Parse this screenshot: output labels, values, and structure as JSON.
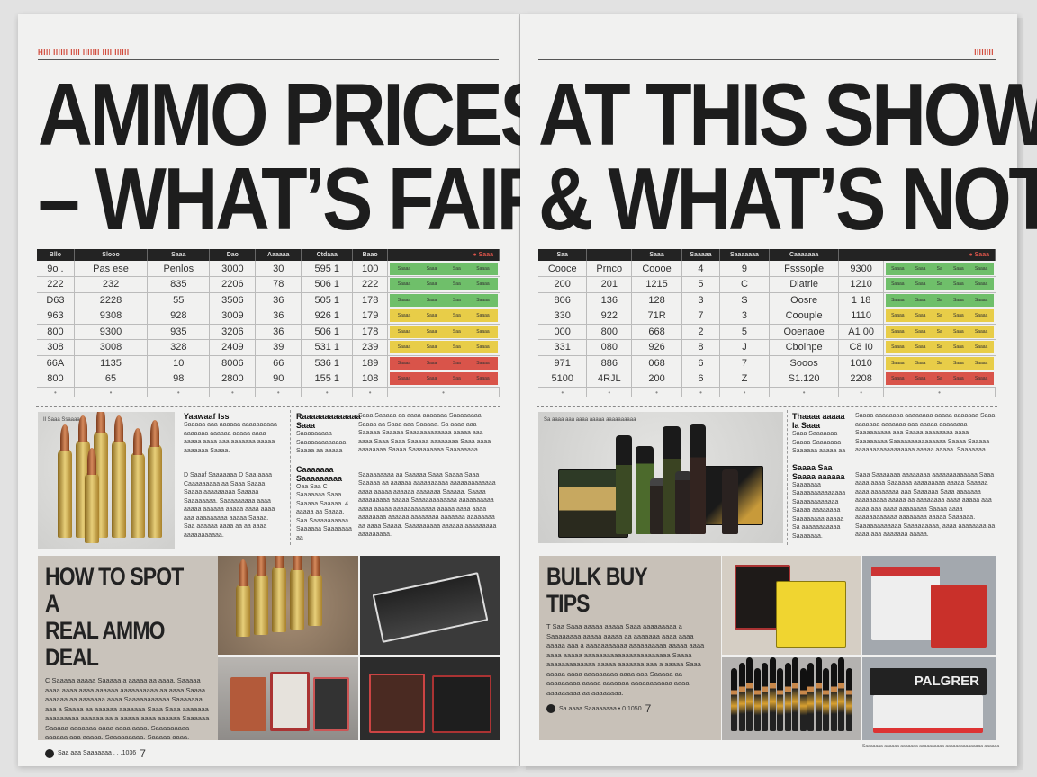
{
  "left_page": {
    "kicker": "HIII IIIIII IIII IIIIIII IIII IIIIII",
    "headline": [
      "AMMO PRICES",
      "– WHAT’S FAIR"
    ],
    "table": {
      "headers": [
        "Bllo",
        "Slooo",
        "Saaa",
        "Dao",
        "Aaaaaa",
        "Ctdaaa",
        "Baao",
        "● Saaa"
      ],
      "rows": [
        [
          "9o .",
          "Pas ese",
          "Penlos",
          "3000",
          "30",
          "595   1",
          "100"
        ],
        [
          "222",
          "232",
          "835",
          "2206",
          "78",
          "506   1",
          "222"
        ],
        [
          "D63",
          "2228",
          "55",
          "3506",
          "36",
          "505   1",
          "178"
        ],
        [
          "963",
          "9308",
          "928",
          "3009",
          "36",
          "926   1",
          "179"
        ],
        [
          "800",
          "9300",
          "935",
          "3206",
          "36",
          "506   1",
          "178"
        ],
        [
          "308",
          "3008",
          "328",
          "2409",
          "39",
          "531   1",
          "239"
        ],
        [
          "66A",
          "1135",
          "10",
          "8006",
          "66",
          "536   1",
          "189"
        ],
        [
          "800",
          "65",
          "98",
          "2800",
          "90",
          "155   1",
          "108"
        ]
      ],
      "status": [
        "green",
        "green",
        "green",
        "yellow",
        "yellow",
        "yellow",
        "red",
        "red"
      ],
      "status_text": [
        "Saaaa  Saaa  Saa  Saaaa"
      ]
    },
    "photo_caption": "Il Saaa Ssaaaa .",
    "col1": {
      "title": "Yaawaaf Iss",
      "body": "Saaaaa aaa aaaaaa aaaaaaaaaa aaaaaaa aaaaaa aaaaa aaaa aaaaa aaaa aaa aaaaaaa aaaaa aaaaaaa Saaaa.",
      "body2": "D Saaaf Saaaaaaa D Saa aaaa Caaaaaaaaa aa Saaa Saaaa Saaaa aaaaaaaaa Saaaaa Saaaaaaaa. Saaaaaaaaa aaaa aaaaa aaaaaa aaaaa aaaa aaaa aaa aaaaaaaaa aaaaa Saaaa. Saa aaaaaa aaaa aa aa aaaa aaaaaaaaaaa."
    },
    "col2": {
      "title": "Raaaaaaaaaaaaa Saaa",
      "body": "Saaaaaaaaa Saaaaaaaaaaaaa Saaaa aa aaaaa",
      "title2": "Caaaaaaa Saaaaaaaaa",
      "body2": "Oaa Saa C Saaaaaaa Saaa Saaaaa Saaaaa. 4 aaaaa aa Saaaa. Saa Saaaaaaaaaa Saaaaaa Saaaaaaa aa"
    },
    "col3": {
      "body": "Saaa Saaaaa aa aaaa aaaaaaa Saaaaaaaa Saaaa aa Saaa aaa Saaaaa. Sa aaaa aaa Saaaaa Saaaaa Saaaaaaaaaaaa aaaaa aaa aaaa Saaa Saaa Saaaaa aaaaaaaa Saaa aaaa aaaaaaaa Saaaa Saaaaaaaaa Saaaaaaaa.",
      "body2": "Saaaaaaaaa aa Saaaaa Saaa Saaaa Saaa Saaaaa aa aaaaaa aaaaaaaaaa aaaaaaaaaaaaa aaaa aaaaa aaaaaa aaaaaaa Saaaaa. Saaaa aaaaaaaaa aaaaa Saaaaaaaaaaaa aaaaaaaaaa aaaa aaaaa aaaaaaaaaaaa aaaaa aaaa aaaa aaaaaaaa aaaaaa aaaaaaaa aaaaaaa aaaaaaaa aa aaaa Saaaa. Saaaaaaaaa aaaaaa aaaaaaaaa aaaaaaaaa."
    },
    "panel": {
      "title": [
        "HOW TO SPOT A",
        "REAL AMMO DEAL"
      ],
      "body": "C Saaaaa aaaaa Saaaaa a aaaaa aa aaaa. Saaaaa aaaa aaaa aaaa aaaaaa aaaaaaaaaa aa aaaa Saaaa aaaaaa aa aaaaaaa aaaa Saaaaaaaaaaa Saaaaaaa aaa a Saaaa aa aaaaaa aaaaaaa Saaa Saaa aaaaaaa aaaaaaaaa aaaaaa aa a aaaaa aaaa aaaaaa Saaaaaa Saaaaa aaaaaaa aaaa aaaa aaaa. Saaaaaaaaa aaaaaa aaa aaaaa. Saaaaaaaaa. Saaaaa aaaa.",
      "footer": "Saa aaa Saaaaaaa . . .1036",
      "page": "7"
    }
  },
  "right_page": {
    "kicker": "IIIIIIII",
    "headline": [
      "AT THIS SHOW",
      "& WHAT’S NOT"
    ],
    "table": {
      "headers": [
        "Saa",
        "",
        "Saaa",
        "Saaaaa",
        "Saaaaaaa",
        "Caaaaaaa",
        "● Saaa"
      ],
      "rows": [
        [
          "Cooce",
          "Prnco",
          "Coooe",
          "4",
          "9",
          "Fsssople",
          "9300"
        ],
        [
          "200",
          "201",
          "1215",
          "5",
          "C",
          "Dlatrie",
          "1210"
        ],
        [
          "806",
          "136",
          "128",
          "3",
          "S",
          "Oosre",
          "1 18"
        ],
        [
          "330",
          "922",
          "71R",
          "7",
          "3",
          "Coouple",
          "1110"
        ],
        [
          "000",
          "800",
          "668",
          "2",
          "5",
          "Ooenaoe",
          "A1 00"
        ],
        [
          "331",
          "080",
          "926",
          "8",
          "J",
          "Cboinpe",
          "C8 I0"
        ],
        [
          "971",
          "886",
          "068",
          "6",
          "7",
          "Sooos",
          "1010"
        ],
        [
          "5100",
          "4RJL",
          "200",
          "6",
          "Z",
          "S1.120",
          "2208"
        ]
      ],
      "status": [
        "green",
        "green",
        "green",
        "yellow",
        "yellow",
        "yellow",
        "yellow",
        "red"
      ],
      "status_text": [
        "Saaaa  Saaa  Sa  Saaa  Saaaa"
      ]
    },
    "photo_caption": "Sa aaaa aaa aaaa aaaaa aaaaaaaaaa",
    "col1": {
      "title": "Thaaaa aaaaa Ia Saaa",
      "body": "Saaa Saaaaaaa Saaaa Saaaaaaa Saaaaaa aaaaa aa",
      "title2": "Saaaa Saa Saaaa aaaaaa",
      "body2": "Saaaaaaa Saaaaaaaaaaaaaa Saaaaaaaaaaaa Saaaa aaaaaaaa Saaaaaaaa aaaaa Sa aaaaaaaaaaa Saaaaaaa."
    },
    "col2": {
      "body": "Saaaa aaaaaaaa aaaaaaaa aaaaa aaaaaaa Saaa aaaaaaa aaaaaaa aaa aaaaa aaaaaaaa Saaaaaaaaa aaa Saaaa aaaaaaaa aaaa Saaaaaaaa Saaaaaaaaaaaaaaa Saaaa Saaaaa aaaaaaaaaaaaaaaaa aaaaa aaaaa. Saaaaaaa.",
      "body2": "Saaa Saaaaaaa aaaaaaaa aaaaaaaaaaaaa Saaa aaaa aaaa Saaaaaa aaaaaaaaa aaaaa Saaaaa aaaa aaaaaaaa aaa Saaaaaa Saaa aaaaaaa aaaaaaaaa aaaaa aa aaaaaaaa aaaa aaaaa aaa aaaa aaa aaaa aaaaaaaa Saaaa aaaa aaaaaaaaaaaa aaaaaaaa aaaaa Saaaaaa. Saaaaaaaaaaaa Saaaaaaaaa, aaaa aaaaaaaa aa aaaa aaa aaaaaaa aaaaa."
    },
    "panel": {
      "title": [
        "BULK BUY",
        "TIPS"
      ],
      "body": "T Saa Saaa aaaaa aaaaa Saaa aaaaaaaaa a Saaaaaaaa aaaaa aaaaa aa aaaaaaa aaaa aaaa aaaaa aaa a aaaaaaaaaaa aaaaaaaaaa aaaaa aaaa aaaa aaaaa aaaaaaaaaaaaaaaaaaaaaaa Saaaa aaaaaaaaaaaaa aaaaa aaaaaaa aaa a aaaaa Saaa aaaaa aaaa aaaaaaaaa aaaa aaa Saaaaa aa aaaaaaaaa aaaaa aaaaaaa aaaaaaaaaaa aaaa aaaaaaaaa aa aaaaaaaa.",
      "footer": "Sa aaaa Saaaaaaaa • 0 1050",
      "page": "7",
      "box_label": "PALGRER",
      "photo_caption": "Saaaaaaa aaaaaa aaaaaaa aaaaaaaaaa aaaaaaaaaaaaaaa aaaaaa"
    }
  },
  "colors": {
    "green": "#6fbf6a",
    "yellow": "#e8cd48",
    "red": "#d9544a",
    "kicker": "#d24a3a",
    "header_bg": "#232323"
  }
}
